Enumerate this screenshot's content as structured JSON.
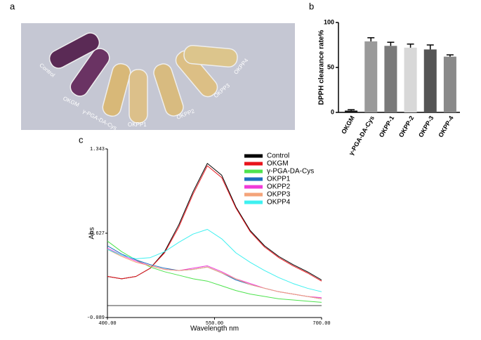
{
  "panels": [
    "a",
    "b",
    "c"
  ],
  "photo": {
    "labels": [
      "Control",
      "OKGM",
      "γ-PGA-DA-Cys",
      "OKPP1",
      "OKPP2",
      "OKPP3",
      "OKPP4"
    ]
  },
  "chart_data": [
    {
      "type": "bar",
      "ylabel": "DPPH clearance rate%",
      "categories": [
        "OKGM",
        "γ-PGA-DA-Cys",
        "OKPP-1",
        "OKPP-2",
        "OKPP-3",
        "OKPP-4"
      ],
      "values": [
        2,
        79,
        74,
        72,
        70,
        62
      ],
      "errors": [
        1,
        4,
        4,
        4,
        5,
        2
      ],
      "colors": [
        "#111111",
        "#9a9a9a",
        "#7a7a7a",
        "#d8d8d8",
        "#555555",
        "#8a8a8a"
      ],
      "ylim": [
        0,
        100
      ],
      "yticks": [
        0,
        50,
        100
      ]
    },
    {
      "type": "line",
      "xlabel": "Wavelength nm",
      "ylabel": "Abs",
      "x": [
        400,
        420,
        440,
        460,
        480,
        500,
        520,
        540,
        560,
        580,
        600,
        620,
        640,
        660,
        680,
        700
      ],
      "series": [
        {
          "name": "Control",
          "color": "#000000",
          "values": [
            0.26,
            0.24,
            0.26,
            0.33,
            0.47,
            0.7,
            0.98,
            1.22,
            1.12,
            0.85,
            0.65,
            0.52,
            0.43,
            0.36,
            0.3,
            0.23
          ]
        },
        {
          "name": "OKGM",
          "color": "#e8141b",
          "values": [
            0.26,
            0.24,
            0.26,
            0.33,
            0.46,
            0.68,
            0.96,
            1.2,
            1.1,
            0.84,
            0.64,
            0.51,
            0.42,
            0.35,
            0.29,
            0.22
          ]
        },
        {
          "name": "γ-PGA-DA-Cys",
          "color": "#4ee34e",
          "values": [
            0.56,
            0.47,
            0.4,
            0.34,
            0.3,
            0.27,
            0.24,
            0.22,
            0.18,
            0.14,
            0.11,
            0.09,
            0.07,
            0.06,
            0.05,
            0.04
          ]
        },
        {
          "name": "OKPP1",
          "color": "#1d6fbf",
          "values": [
            0.52,
            0.45,
            0.4,
            0.36,
            0.33,
            0.31,
            0.32,
            0.34,
            0.29,
            0.23,
            0.19,
            0.16,
            0.13,
            0.11,
            0.09,
            0.07
          ]
        },
        {
          "name": "OKPP2",
          "color": "#f03ad8",
          "values": [
            0.5,
            0.44,
            0.39,
            0.35,
            0.32,
            0.31,
            0.33,
            0.35,
            0.3,
            0.24,
            0.2,
            0.16,
            0.13,
            0.11,
            0.09,
            0.08
          ]
        },
        {
          "name": "OKPP3",
          "color": "#f4a47a",
          "values": [
            0.49,
            0.43,
            0.38,
            0.35,
            0.32,
            0.31,
            0.32,
            0.34,
            0.29,
            0.24,
            0.19,
            0.16,
            0.13,
            0.11,
            0.09,
            0.07
          ]
        },
        {
          "name": "OKPP4",
          "color": "#3ef0f0",
          "values": [
            0.49,
            0.44,
            0.41,
            0.42,
            0.47,
            0.55,
            0.62,
            0.66,
            0.58,
            0.46,
            0.38,
            0.31,
            0.25,
            0.2,
            0.16,
            0.13
          ]
        }
      ],
      "xlim": [
        400,
        700
      ],
      "xticks": [
        {
          "value": 400,
          "label": "400.00"
        },
        {
          "value": 550,
          "label": "550.00"
        },
        {
          "value": 700,
          "label": "700.00"
        }
      ],
      "ylim": [
        -0.089,
        1.343
      ],
      "yticks": [
        -0.089,
        0.627,
        1.343
      ],
      "legend": "upper right"
    }
  ]
}
